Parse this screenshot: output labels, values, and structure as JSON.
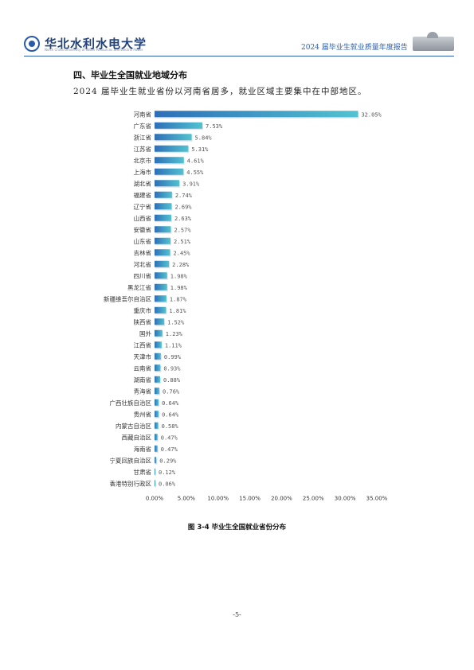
{
  "header": {
    "logo_text": "华北水利水电大学",
    "logo_sub": "North China University of Water Resources and Electric Power",
    "title": "2024 届毕业生就业质量年度报告",
    "emblem_icon": "university-emblem-icon",
    "building_icon": "campus-building-icon"
  },
  "section_title": "四、毕业生全国就业地域分布",
  "intro": "2024 届毕业生就业省份以河南省居多，就业区域主要集中在中部地区。",
  "chart_data": {
    "type": "bar",
    "orientation": "horizontal",
    "categories": [
      "河南省",
      "广东省",
      "浙江省",
      "江苏省",
      "北京市",
      "上海市",
      "湖北省",
      "福建省",
      "辽宁省",
      "山西省",
      "安徽省",
      "山东省",
      "吉林省",
      "河北省",
      "四川省",
      "黑龙江省",
      "新疆维吾尔自治区",
      "重庆市",
      "陕西省",
      "国外",
      "江西省",
      "天津市",
      "云南省",
      "湖南省",
      "青海省",
      "广西壮族自治区",
      "贵州省",
      "内蒙古自治区",
      "西藏自治区",
      "海南省",
      "宁夏回族自治区",
      "甘肃省",
      "香港特别行政区"
    ],
    "values": [
      32.05,
      7.53,
      5.84,
      5.31,
      4.61,
      4.55,
      3.91,
      2.74,
      2.69,
      2.63,
      2.57,
      2.51,
      2.45,
      2.28,
      1.98,
      1.98,
      1.87,
      1.81,
      1.52,
      1.23,
      1.11,
      0.99,
      0.93,
      0.88,
      0.76,
      0.64,
      0.64,
      0.58,
      0.47,
      0.47,
      0.29,
      0.12,
      0.06
    ],
    "value_labels": [
      "32.05%",
      "7.53%",
      "5.84%",
      "5.31%",
      "4.61%",
      "4.55%",
      "3.91%",
      "2.74%",
      "2.69%",
      "2.63%",
      "2.57%",
      "2.51%",
      "2.45%",
      "2.28%",
      "1.98%",
      "1.98%",
      "1.87%",
      "1.81%",
      "1.52%",
      "1.23%",
      "1.11%",
      "0.99%",
      "0.93%",
      "0.88%",
      "0.76%",
      "0.64%",
      "0.64%",
      "0.58%",
      "0.47%",
      "0.47%",
      "0.29%",
      "0.12%",
      "0.06%"
    ],
    "xlim": [
      0,
      35
    ],
    "xticks": [
      "0.00%",
      "5.00%",
      "10.00%",
      "15.00%",
      "20.00%",
      "25.00%",
      "30.00%",
      "35.00%"
    ],
    "bar_color_start": "#2e6fb7",
    "bar_color_end": "#52c2d0",
    "grid": false,
    "legend": "none"
  },
  "caption": "图 3-4  毕业生全国就业省份分布",
  "page_number": "-5-"
}
